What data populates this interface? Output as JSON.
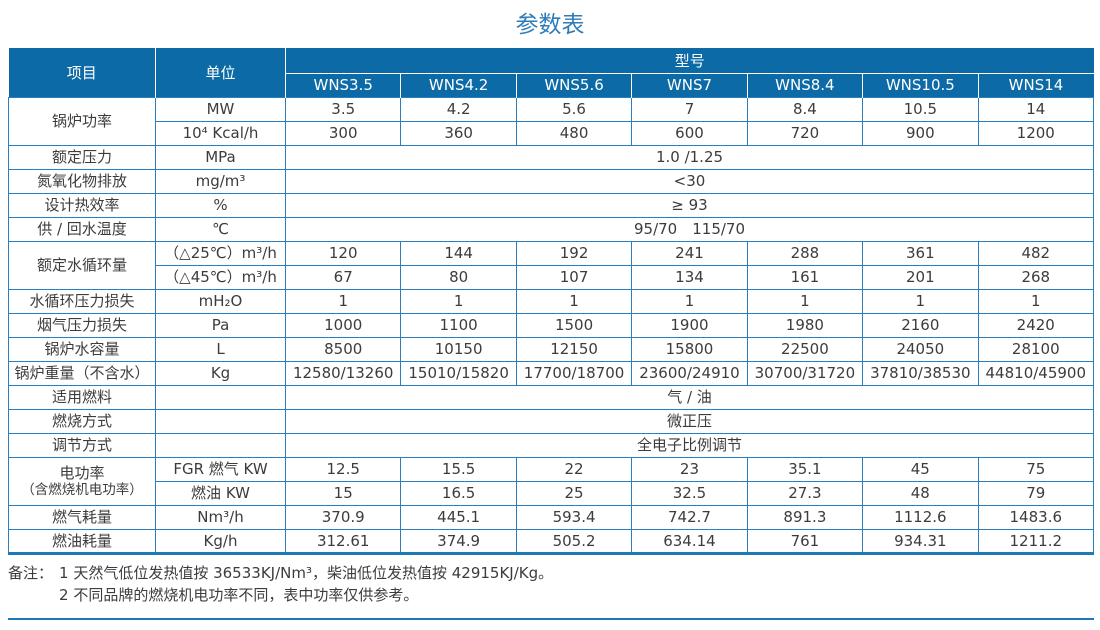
{
  "page": {
    "title": "参数表"
  },
  "colors": {
    "header_background": "#0c6aa6",
    "grid_line": "#2a7fc0",
    "title_text": "#2e7cb8",
    "body_text": "#3c3c3c"
  },
  "table": {
    "header": {
      "item": "项目",
      "unit": "单位",
      "model_group": "型号",
      "models": [
        "WNS3.5",
        "WNS4.2",
        "WNS5.6",
        "WNS7",
        "WNS8.4",
        "WNS10.5",
        "WNS14"
      ]
    },
    "rows": {
      "power": {
        "label": "锅炉功率",
        "mw": {
          "unit": "MW",
          "values": [
            "3.5",
            "4.2",
            "5.6",
            "7",
            "8.4",
            "10.5",
            "14"
          ]
        },
        "kcal": {
          "unit": "10⁴ Kcal/h",
          "values": [
            "300",
            "360",
            "480",
            "600",
            "720",
            "900",
            "1200"
          ]
        }
      },
      "pressure": {
        "label": "额定压力",
        "unit": "MPa",
        "value": "1.0 /1.25"
      },
      "nox": {
        "label": "氮氧化物排放",
        "unit": "mg/m³",
        "value": "<30"
      },
      "efficiency": {
        "label": "设计热效率",
        "unit": "%",
        "value": "≥ 93"
      },
      "water_temp": {
        "label": "供 / 回水温度",
        "unit": "℃",
        "value": "95/70　115/70"
      },
      "circulation": {
        "label": "额定水循环量",
        "d25": {
          "unit": "（△25℃）m³/h",
          "values": [
            "120",
            "144",
            "192",
            "241",
            "288",
            "361",
            "482"
          ]
        },
        "d45": {
          "unit": "（△45℃）m³/h",
          "values": [
            "67",
            "80",
            "107",
            "134",
            "161",
            "201",
            "268"
          ]
        }
      },
      "water_ploss": {
        "label": "水循环压力损失",
        "unit": "mH₂O",
        "values": [
          "1",
          "1",
          "1",
          "1",
          "1",
          "1",
          "1"
        ]
      },
      "flue_ploss": {
        "label": "烟气压力损失",
        "unit": "Pa",
        "values": [
          "1000",
          "1100",
          "1500",
          "1900",
          "1980",
          "2160",
          "2420"
        ]
      },
      "water_volume": {
        "label": "锅炉水容量",
        "unit": "L",
        "values": [
          "8500",
          "10150",
          "12150",
          "15800",
          "22500",
          "24050",
          "28100"
        ]
      },
      "weight": {
        "label": "锅炉重量（不含水）",
        "unit": "Kg",
        "values": [
          "12580/13260",
          "15010/15820",
          "17700/18700",
          "23600/24910",
          "30700/31720",
          "37810/38530",
          "44810/45900"
        ]
      },
      "fuel": {
        "label": "适用燃料",
        "unit": "",
        "value": "气 / 油"
      },
      "combustion": {
        "label": "燃烧方式",
        "unit": "",
        "value": "微正压"
      },
      "regulation": {
        "label": "调节方式",
        "unit": "",
        "value": "全电子比例调节"
      },
      "electric_power": {
        "label_line1": "电功率",
        "label_line2": "（含燃烧机电功率）",
        "gas": {
          "unit": "FGR 燃气 KW",
          "values": [
            "12.5",
            "15.5",
            "22",
            "23",
            "35.1",
            "45",
            "75"
          ]
        },
        "oil": {
          "unit": "燃油 KW",
          "values": [
            "15",
            "16.5",
            "25",
            "32.5",
            "27.3",
            "48",
            "79"
          ]
        }
      },
      "gas_consumption": {
        "label": "燃气耗量",
        "unit": "Nm³/h",
        "values": [
          "370.9",
          "445.1",
          "593.4",
          "742.7",
          "891.3",
          "1112.6",
          "1483.6"
        ]
      },
      "oil_consumption": {
        "label": "燃油耗量",
        "unit": "Kg/h",
        "values": [
          "312.61",
          "374.9",
          "505.2",
          "634.14",
          "761",
          "934.31",
          "1211.2"
        ]
      }
    }
  },
  "notes": {
    "label": "备注：",
    "items": [
      "1  天然气低位发热值按 36533KJ/Nm³，柴油低位发热值按 42915KJ/Kg。",
      "2  不同品牌的燃烧机电功率不同，表中功率仅供参考。"
    ]
  }
}
